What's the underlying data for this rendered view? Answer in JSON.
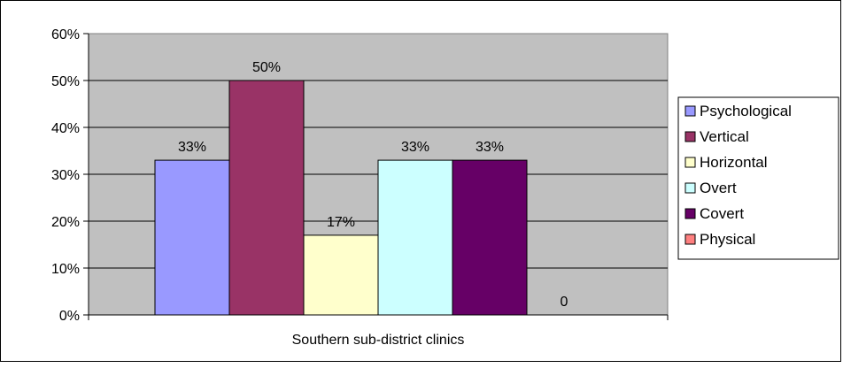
{
  "chart_data": {
    "type": "bar",
    "title": "",
    "xlabel": "",
    "ylabel": "",
    "categories": [
      "Southern sub-district clinics"
    ],
    "ylim": [
      0,
      60
    ],
    "yticks": [
      "0%",
      "10%",
      "20%",
      "30%",
      "40%",
      "50%",
      "60%"
    ],
    "grid": true,
    "legend_position": "right",
    "plot_background": "#c0c0c0",
    "series": [
      {
        "name": "Psychological",
        "values": [
          33
        ],
        "label": "33%",
        "color": "#9999ff"
      },
      {
        "name": "Vertical",
        "values": [
          50
        ],
        "label": "50%",
        "color": "#993366"
      },
      {
        "name": "Horizontal",
        "values": [
          17
        ],
        "label": "17%",
        "color": "#ffffcc"
      },
      {
        "name": "Overt",
        "values": [
          33
        ],
        "label": "33%",
        "color": "#ccffff"
      },
      {
        "name": "Covert",
        "values": [
          33
        ],
        "label": "33%",
        "color": "#660066"
      },
      {
        "name": "Physical",
        "values": [
          0
        ],
        "label": "0",
        "color": "#ff8080"
      }
    ]
  }
}
